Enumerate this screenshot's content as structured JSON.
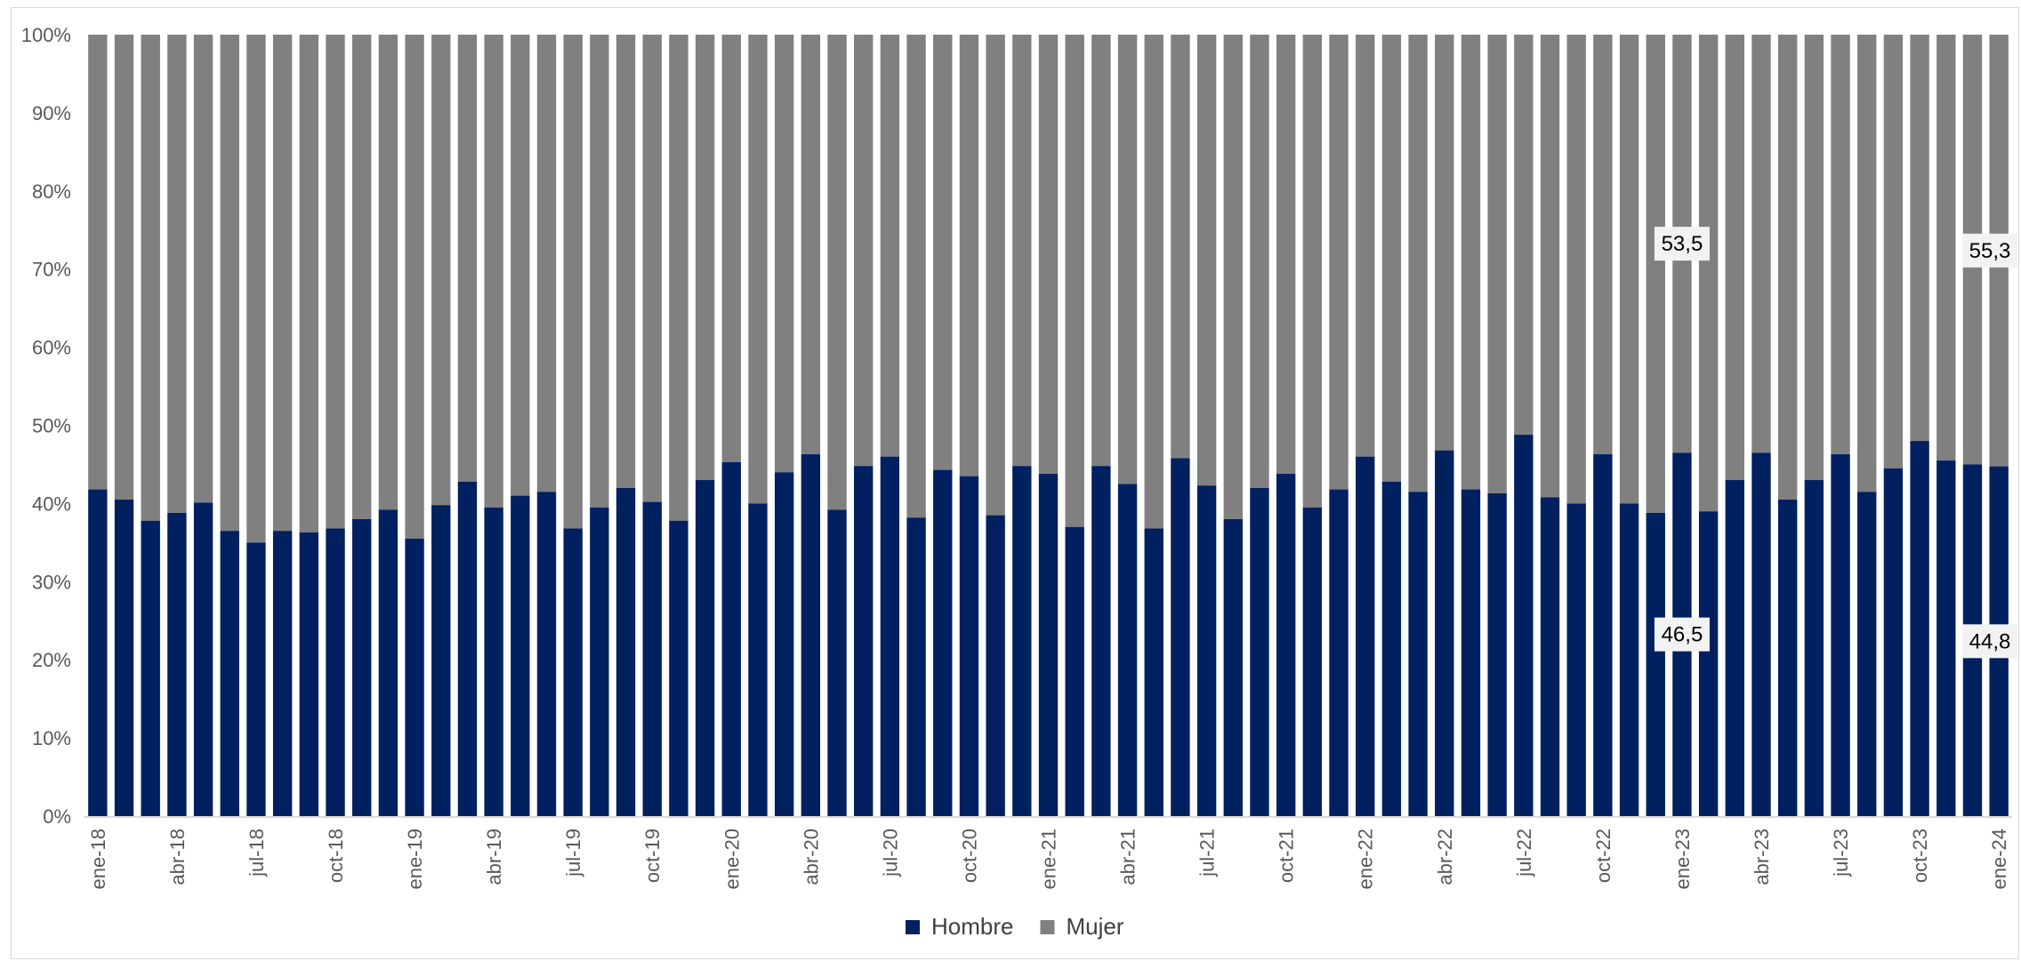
{
  "chart_data": {
    "type": "bar",
    "stacked": true,
    "percent_stacked": true,
    "title": "",
    "xlabel": "",
    "ylabel": "",
    "ylim": [
      0,
      100
    ],
    "y_ticks": [
      "0%",
      "10%",
      "20%",
      "30%",
      "40%",
      "50%",
      "60%",
      "70%",
      "80%",
      "90%",
      "100%"
    ],
    "grid": false,
    "legend_position": "bottom",
    "categories": [
      "ene-18",
      "feb-18",
      "mar-18",
      "abr-18",
      "may-18",
      "jun-18",
      "jul-18",
      "ago-18",
      "sep-18",
      "oct-18",
      "nov-18",
      "dic-18",
      "ene-19",
      "feb-19",
      "mar-19",
      "abr-19",
      "may-19",
      "jun-19",
      "jul-19",
      "ago-19",
      "sep-19",
      "oct-19",
      "nov-19",
      "dic-19",
      "ene-20",
      "feb-20",
      "mar-20",
      "abr-20",
      "may-20",
      "jun-20",
      "jul-20",
      "ago-20",
      "sep-20",
      "oct-20",
      "nov-20",
      "dic-20",
      "ene-21",
      "feb-21",
      "mar-21",
      "abr-21",
      "may-21",
      "jun-21",
      "jul-21",
      "ago-21",
      "sep-21",
      "oct-21",
      "nov-21",
      "dic-21",
      "ene-22",
      "feb-22",
      "mar-22",
      "abr-22",
      "may-22",
      "jun-22",
      "jul-22",
      "ago-22",
      "sep-22",
      "oct-22",
      "nov-22",
      "dic-22",
      "ene-23",
      "feb-23",
      "mar-23",
      "abr-23",
      "may-23",
      "jun-23",
      "jul-23",
      "ago-23",
      "sep-23",
      "oct-23",
      "nov-23",
      "dic-23",
      "ene-24"
    ],
    "x_tick_labels": [
      "ene-18",
      "abr-18",
      "jul-18",
      "oct-18",
      "ene-19",
      "abr-19",
      "jul-19",
      "oct-19",
      "ene-20",
      "abr-20",
      "jul-20",
      "oct-20",
      "ene-21",
      "abr-21",
      "jul-21",
      "oct-21",
      "ene-22",
      "abr-22",
      "jul-22",
      "oct-22",
      "ene-23",
      "abr-23",
      "jul-23",
      "oct-23",
      "ene-24"
    ],
    "series": [
      {
        "name": "Hombre",
        "color": "#002060",
        "values": [
          41.8,
          40.5,
          37.8,
          38.8,
          40.1,
          36.5,
          35.0,
          36.5,
          36.3,
          36.8,
          38.0,
          39.2,
          35.5,
          39.8,
          42.8,
          39.5,
          41.0,
          41.5,
          36.8,
          39.5,
          42.0,
          40.2,
          37.8,
          43.0,
          45.3,
          40.0,
          44.0,
          46.3,
          39.2,
          44.8,
          46.0,
          38.2,
          44.3,
          43.5,
          38.5,
          44.8,
          43.8,
          37.0,
          44.8,
          42.5,
          36.8,
          45.8,
          42.3,
          38.0,
          42.0,
          43.8,
          39.5,
          41.8,
          46.0,
          42.8,
          41.5,
          46.8,
          41.8,
          41.3,
          48.8,
          40.8,
          40.0,
          46.3,
          40.0,
          38.8,
          46.5,
          39.0,
          43.0,
          46.5,
          40.5,
          43.0,
          46.3,
          41.5,
          44.5,
          48.0,
          45.5,
          45.0,
          44.8
        ]
      },
      {
        "name": "Mujer",
        "color": "#808080",
        "values": [
          58.2,
          59.5,
          62.2,
          61.2,
          59.9,
          63.5,
          65.0,
          63.5,
          63.7,
          63.2,
          62.0,
          60.8,
          64.5,
          60.2,
          57.2,
          60.5,
          59.0,
          58.5,
          63.2,
          60.5,
          58.0,
          59.8,
          62.2,
          57.0,
          54.7,
          60.0,
          56.0,
          53.7,
          60.8,
          55.2,
          54.0,
          61.8,
          55.7,
          56.5,
          61.5,
          55.2,
          56.2,
          63.0,
          55.2,
          57.5,
          63.2,
          54.2,
          57.7,
          62.0,
          58.0,
          56.2,
          60.5,
          58.2,
          54.0,
          57.2,
          58.5,
          53.2,
          58.2,
          58.7,
          51.2,
          59.2,
          60.0,
          53.7,
          60.0,
          61.2,
          53.5,
          61.0,
          57.0,
          53.5,
          59.5,
          57.0,
          53.7,
          58.5,
          55.5,
          52.0,
          54.5,
          55.0,
          55.3
        ]
      }
    ],
    "data_labels": [
      {
        "category": "ene-23",
        "series": "Hombre",
        "text": "46,5"
      },
      {
        "category": "ene-23",
        "series": "Mujer",
        "text": "53,5"
      },
      {
        "category": "ene-24",
        "series": "Hombre",
        "text": "44,8"
      },
      {
        "category": "ene-24",
        "series": "Mujer",
        "text": "55,3"
      }
    ],
    "colors": {
      "hombre": "#002060",
      "mujer": "#808080",
      "axis": "#d9d9d9",
      "tick_text": "#595959",
      "label_box": "#f2f2f2"
    }
  }
}
